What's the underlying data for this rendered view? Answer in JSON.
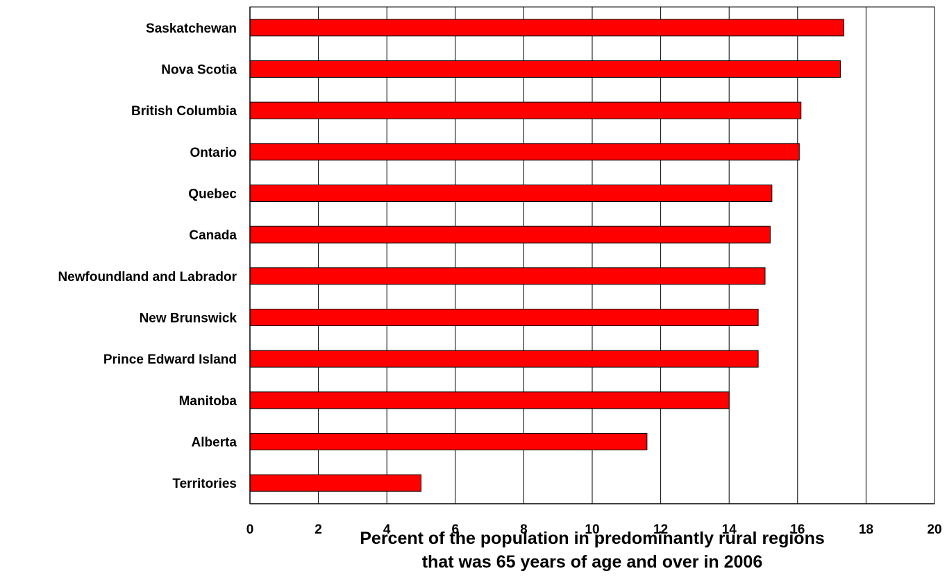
{
  "chart_data": {
    "type": "bar",
    "orientation": "horizontal",
    "categories": [
      "Saskatchewan",
      "Nova Scotia",
      "British Columbia",
      "Ontario",
      "Quebec",
      "Canada",
      "Newfoundland and Labrador",
      "New Brunswick",
      "Prince Edward Island",
      "Manitoba",
      "Alberta",
      "Territories"
    ],
    "values": [
      17.35,
      17.25,
      16.1,
      16.05,
      15.25,
      15.2,
      15.05,
      14.85,
      14.85,
      14.0,
      11.6,
      5.0
    ],
    "xlabel": "Percent of the population in predominantly rural regions that was 65 years of age and over in 2006",
    "xlabel_lines": [
      "Percent of the population in predominantly rural regions",
      "that was 65 years of age and over in 2006"
    ],
    "xlim": [
      0,
      20
    ],
    "xticks": [
      0,
      2,
      4,
      6,
      8,
      10,
      12,
      14,
      16,
      18,
      20
    ],
    "grid": "vertical",
    "legend": "none",
    "bar_color": "#ff0000",
    "bar_edge_color": "#000000"
  }
}
